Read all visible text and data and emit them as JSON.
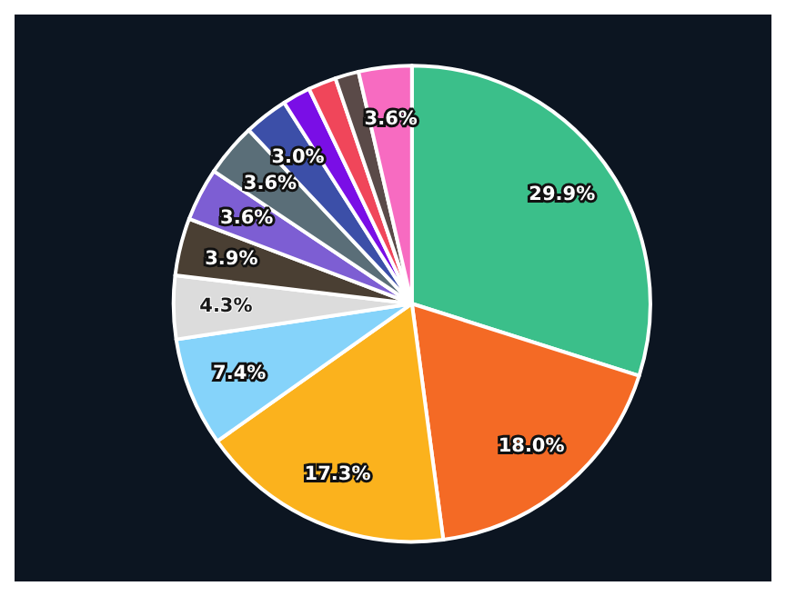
{
  "chart_data": {
    "type": "pie",
    "categories": [
      null,
      null,
      null,
      null,
      null,
      null,
      null,
      null,
      null,
      null,
      null,
      null,
      null
    ],
    "values": [
      29.9,
      18.0,
      17.3,
      7.4,
      4.3,
      3.9,
      3.6,
      3.6,
      3.0,
      1.9,
      1.9,
      1.6,
      3.6
    ],
    "value_labels": [
      "29.9%",
      "18.0%",
      "17.3%",
      "7.4%",
      "4.3%",
      "3.9%",
      "3.6%",
      "3.6%",
      "3.0%",
      null,
      null,
      null,
      "3.6%"
    ],
    "colors": [
      "#3bbf8a",
      "#f46a25",
      "#fbb21d",
      "#85d3fa",
      "#dcdcdc",
      "#4a3f33",
      "#7d5ed3",
      "#5a6e78",
      "#3c4fa8",
      "#7a0ee6",
      "#f0465a",
      "#5a4a48",
      "#f76bc1"
    ]
  }
}
